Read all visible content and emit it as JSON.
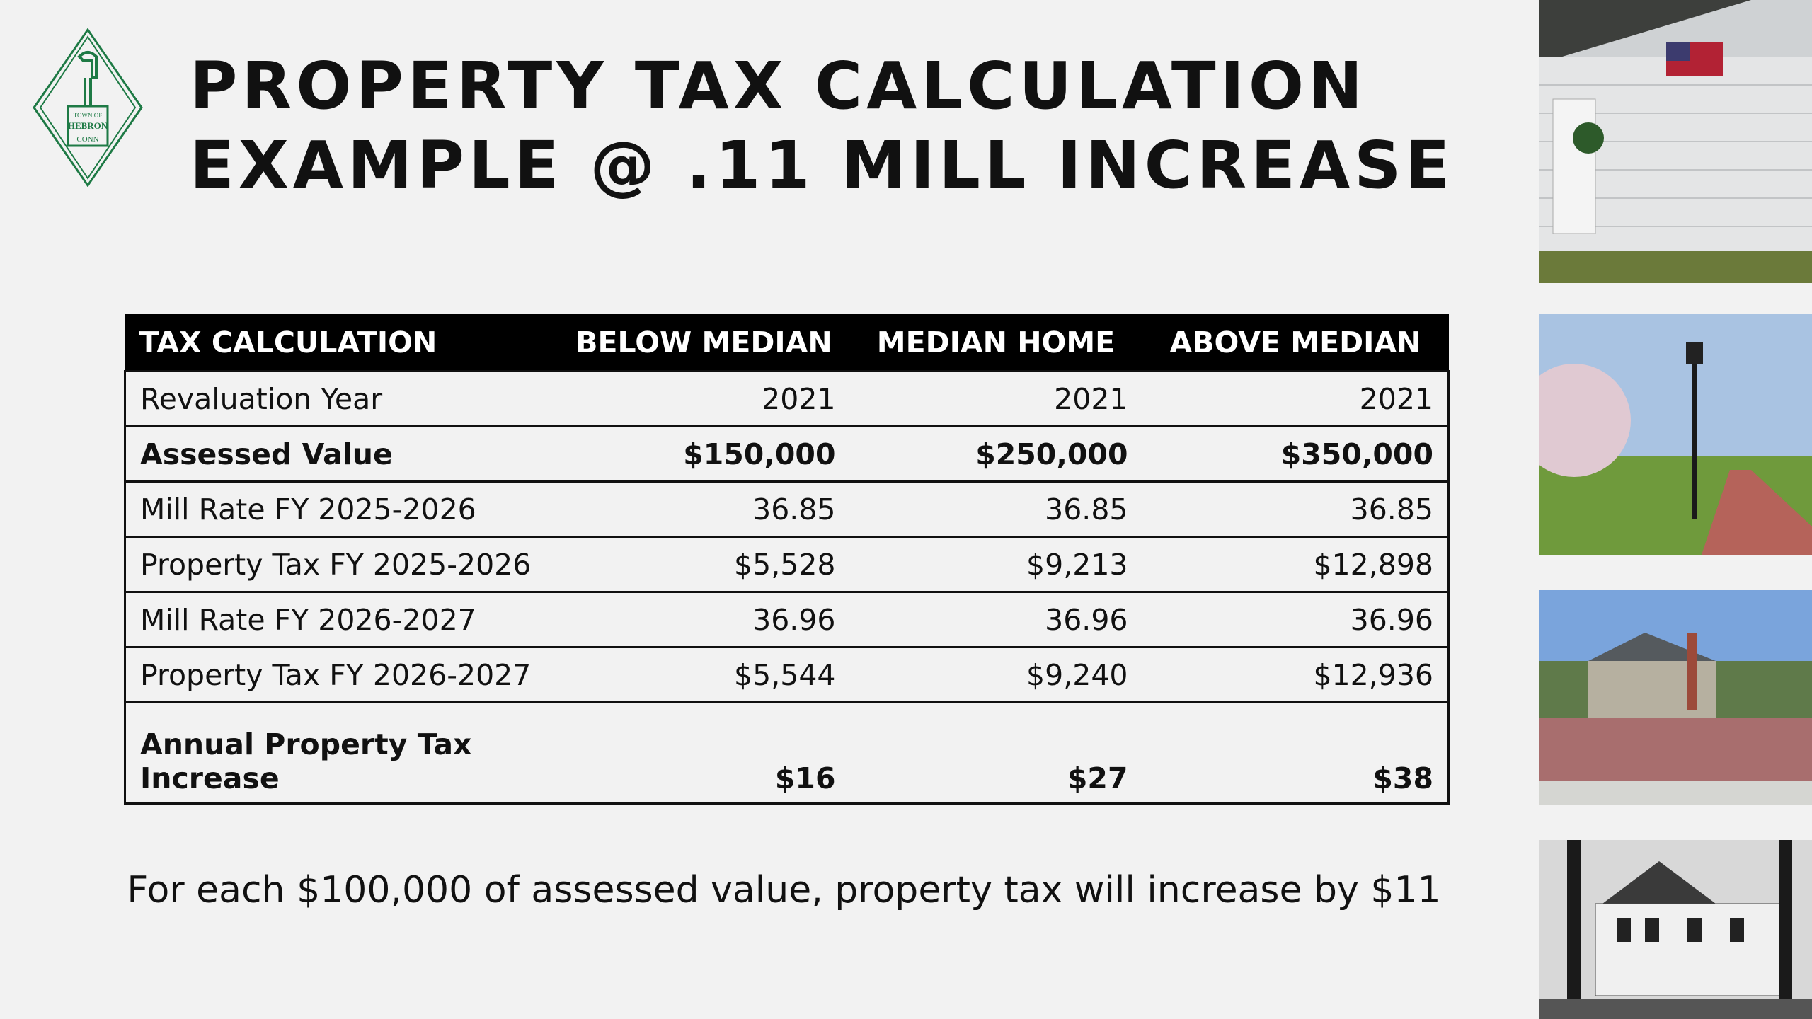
{
  "logo": {
    "lines": [
      "TOWN OF",
      "HEBRON",
      "CONN"
    ]
  },
  "header": {
    "title_lines": [
      "PROPERTY TAX CALCULATION",
      "EXAMPLE @ .11 MILL INCREASE"
    ]
  },
  "table": {
    "columns": [
      "TAX CALCULATION",
      "BELOW MEDIAN",
      "MEDIAN HOME",
      "ABOVE MEDIAN"
    ],
    "rows": [
      {
        "label": [
          "Revaluation Year"
        ],
        "values": [
          "2021",
          "2021",
          "2021"
        ],
        "bold": false
      },
      {
        "label": [
          "Assessed  Value"
        ],
        "values": [
          "$150,000",
          "$250,000",
          "$350,000"
        ],
        "bold": true
      },
      {
        "label": [
          "Mill Rate FY 2025-2026"
        ],
        "values": [
          "36.85",
          "36.85",
          "36.85"
        ],
        "bold": false
      },
      {
        "label": [
          "Property Tax FY 2025-2026"
        ],
        "values": [
          "$5,528",
          "$9,213",
          "$12,898"
        ],
        "bold": false
      },
      {
        "label": [
          "Mill Rate FY 2026-2027"
        ],
        "values": [
          "36.96",
          "36.96",
          "36.96"
        ],
        "bold": false
      },
      {
        "label": [
          "Property Tax FY 2026-2027"
        ],
        "values": [
          "$5,544",
          "$9,240",
          "$12,936"
        ],
        "bold": false
      },
      {
        "label": [
          "Annual Property Tax",
          "Increase"
        ],
        "values": [
          "$16",
          "$27",
          "$38"
        ],
        "bold": true
      }
    ]
  },
  "footer": {
    "text": "For each $100,000 of assessed value, property tax will increase by $11"
  }
}
